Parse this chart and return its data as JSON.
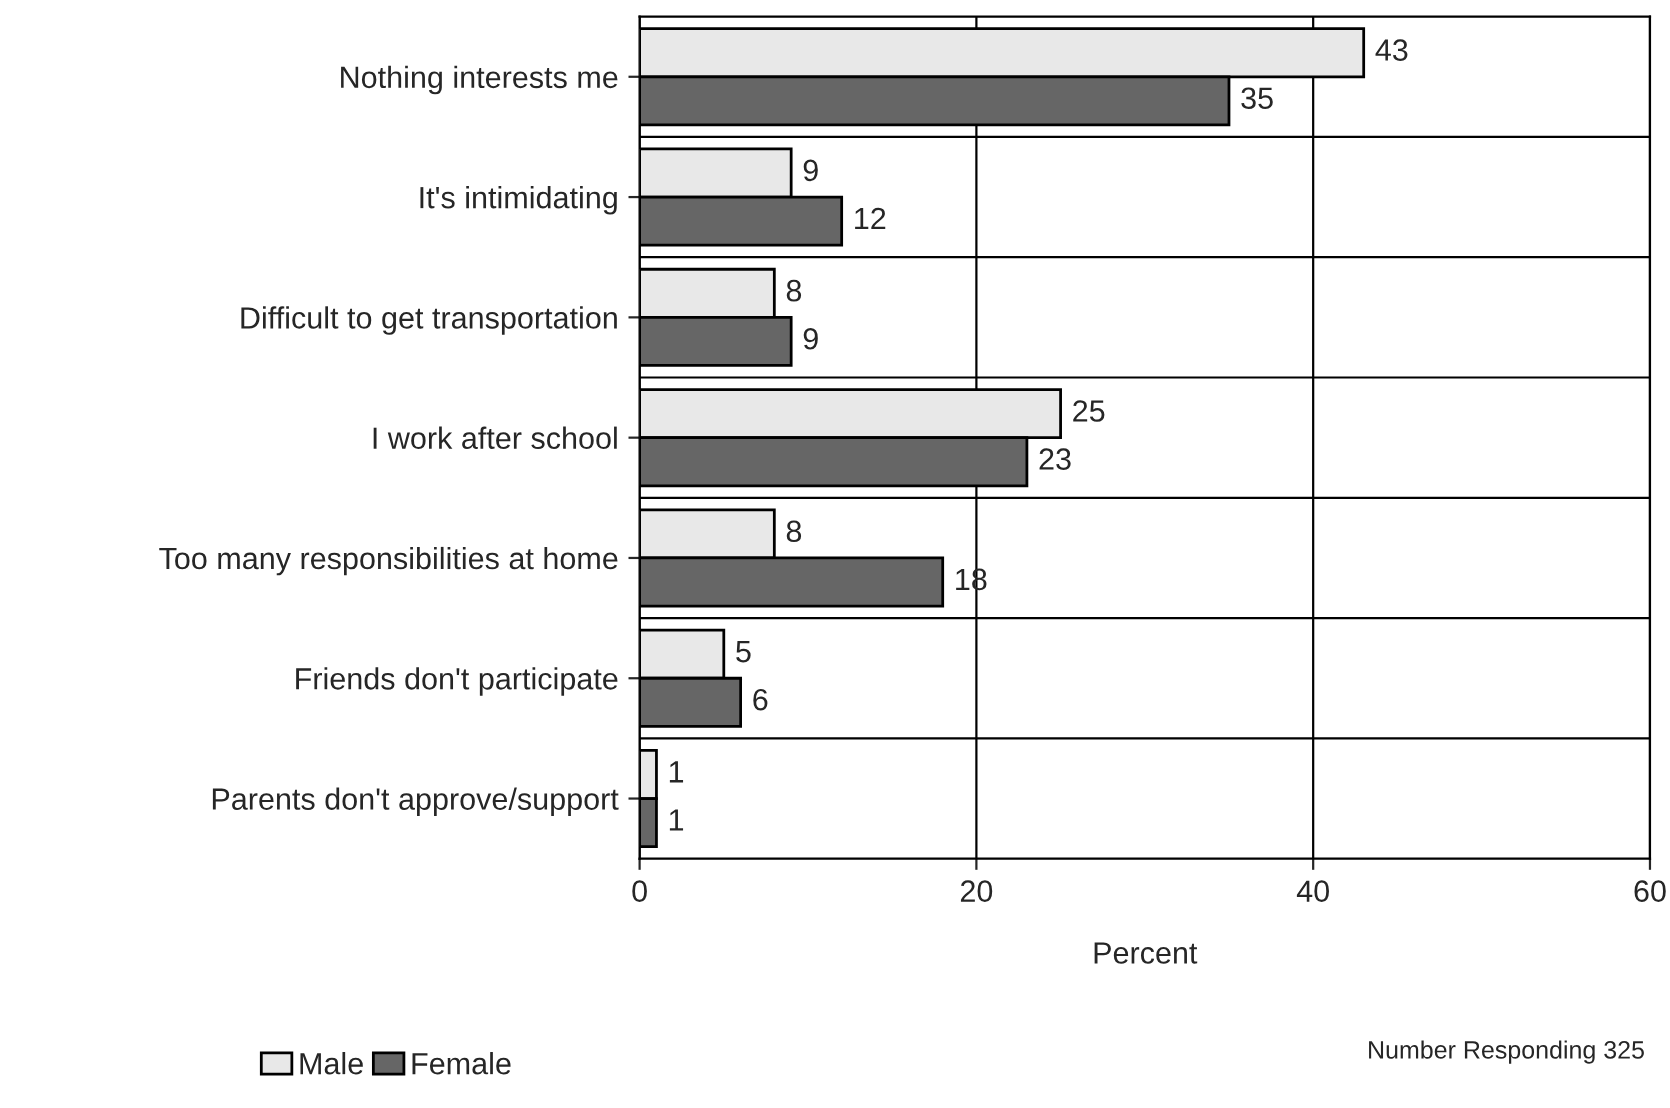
{
  "chart_data": {
    "type": "bar",
    "orientation": "horizontal",
    "xlabel": "Percent",
    "categories": [
      "Nothing interests me",
      "It's intimidating",
      "Difficult to get transportation",
      "I work after school",
      "Too many responsibilities at home",
      "Friends don't participate",
      "Parents don't approve/support"
    ],
    "series": [
      {
        "name": "Male",
        "color": "#e8e8e8",
        "values": [
          43,
          9,
          8,
          25,
          8,
          5,
          1
        ]
      },
      {
        "name": "Female",
        "color": "#666666",
        "values": [
          35,
          12,
          9,
          23,
          18,
          6,
          1
        ]
      }
    ],
    "xlim": [
      0,
      60
    ],
    "xticks": [
      0,
      20,
      40,
      60
    ],
    "grid": "x",
    "data_labels": true,
    "legend": "bottom left",
    "annotations": [
      "Number Responding 325"
    ]
  }
}
